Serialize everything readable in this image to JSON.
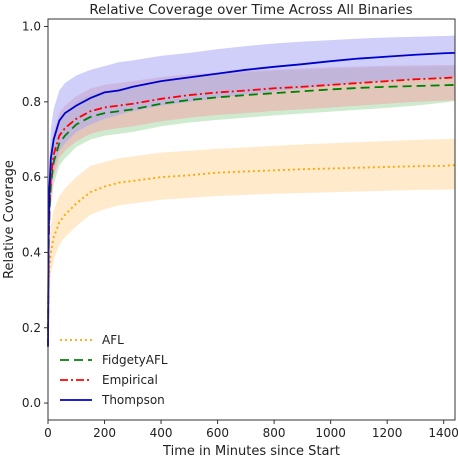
{
  "chart_data": {
    "type": "line",
    "title": "Relative Coverage over Time Across All Binaries",
    "xlabel": "Time in Minutes since Start",
    "ylabel": "Relative Coverage",
    "xlim": [
      0,
      1440
    ],
    "ylim": [
      0.0,
      1.0
    ],
    "xticks": [
      0,
      200,
      400,
      600,
      800,
      1000,
      1200,
      1400
    ],
    "yticks": [
      0.0,
      0.2,
      0.4,
      0.6,
      0.8,
      1.0
    ],
    "grid": false,
    "legend_position": "lower-left",
    "series": [
      {
        "name": "AFL",
        "color": "#ffa500",
        "band_color": "#ffd9a0",
        "linestyle": "dotted",
        "x": [
          0,
          2,
          5,
          10,
          20,
          40,
          60,
          100,
          150,
          200,
          250,
          300,
          400,
          500,
          600,
          700,
          800,
          900,
          1000,
          1100,
          1200,
          1300,
          1400,
          1440
        ],
        "y": [
          0.2,
          0.32,
          0.36,
          0.4,
          0.44,
          0.48,
          0.5,
          0.53,
          0.56,
          0.575,
          0.585,
          0.59,
          0.6,
          0.605,
          0.612,
          0.615,
          0.618,
          0.621,
          0.623,
          0.625,
          0.627,
          0.629,
          0.63,
          0.632
        ],
        "lower": [
          0.14,
          0.26,
          0.3,
          0.34,
          0.38,
          0.42,
          0.44,
          0.47,
          0.5,
          0.515,
          0.525,
          0.53,
          0.54,
          0.545,
          0.55,
          0.553,
          0.556,
          0.558,
          0.56,
          0.562,
          0.564,
          0.566,
          0.567,
          0.568
        ],
        "upper": [
          0.26,
          0.38,
          0.42,
          0.47,
          0.51,
          0.55,
          0.57,
          0.6,
          0.63,
          0.64,
          0.65,
          0.655,
          0.665,
          0.67,
          0.675,
          0.679,
          0.683,
          0.687,
          0.69,
          0.693,
          0.696,
          0.699,
          0.701,
          0.702
        ]
      },
      {
        "name": "FidgetyAFL",
        "color": "#008000",
        "band_color": "#a8dba8",
        "linestyle": "dashed",
        "x": [
          0,
          2,
          5,
          10,
          20,
          40,
          60,
          100,
          150,
          200,
          250,
          300,
          400,
          500,
          600,
          700,
          800,
          900,
          1000,
          1100,
          1200,
          1300,
          1400,
          1440
        ],
        "y": [
          0.15,
          0.4,
          0.5,
          0.58,
          0.64,
          0.69,
          0.71,
          0.74,
          0.76,
          0.77,
          0.775,
          0.78,
          0.795,
          0.805,
          0.812,
          0.818,
          0.823,
          0.828,
          0.833,
          0.837,
          0.84,
          0.842,
          0.844,
          0.845
        ],
        "lower": [
          0.1,
          0.34,
          0.44,
          0.52,
          0.58,
          0.63,
          0.65,
          0.68,
          0.7,
          0.71,
          0.715,
          0.72,
          0.735,
          0.745,
          0.752,
          0.758,
          0.764,
          0.769,
          0.774,
          0.779,
          0.784,
          0.79,
          0.798,
          0.802
        ],
        "upper": [
          0.2,
          0.46,
          0.56,
          0.64,
          0.7,
          0.75,
          0.77,
          0.8,
          0.82,
          0.83,
          0.835,
          0.84,
          0.855,
          0.865,
          0.872,
          0.878,
          0.882,
          0.885,
          0.888,
          0.89,
          0.892,
          0.893,
          0.894,
          0.895
        ]
      },
      {
        "name": "Empirical",
        "color": "#ff0000",
        "band_color": "#f0a8a8",
        "linestyle": "dashdot",
        "x": [
          0,
          2,
          5,
          10,
          20,
          40,
          60,
          100,
          150,
          200,
          250,
          300,
          400,
          500,
          600,
          700,
          800,
          900,
          1000,
          1100,
          1200,
          1300,
          1400,
          1440
        ],
        "y": [
          0.15,
          0.42,
          0.52,
          0.6,
          0.66,
          0.71,
          0.73,
          0.755,
          0.775,
          0.785,
          0.79,
          0.795,
          0.808,
          0.818,
          0.825,
          0.83,
          0.836,
          0.84,
          0.845,
          0.85,
          0.855,
          0.86,
          0.863,
          0.865
        ],
        "lower": [
          0.1,
          0.36,
          0.46,
          0.54,
          0.6,
          0.65,
          0.67,
          0.695,
          0.715,
          0.725,
          0.73,
          0.735,
          0.748,
          0.758,
          0.765,
          0.77,
          0.776,
          0.78,
          0.785,
          0.79,
          0.795,
          0.8,
          0.803,
          0.805
        ],
        "upper": [
          0.2,
          0.48,
          0.58,
          0.66,
          0.72,
          0.77,
          0.79,
          0.815,
          0.835,
          0.845,
          0.85,
          0.855,
          0.866,
          0.873,
          0.878,
          0.882,
          0.886,
          0.889,
          0.892,
          0.894,
          0.896,
          0.897,
          0.898,
          0.898
        ]
      },
      {
        "name": "Thompson",
        "color": "#0000cc",
        "band_color": "#a8a8f5",
        "linestyle": "solid",
        "x": [
          0,
          2,
          5,
          10,
          20,
          40,
          60,
          100,
          150,
          200,
          250,
          300,
          400,
          500,
          600,
          700,
          800,
          900,
          1000,
          1100,
          1200,
          1300,
          1400,
          1440
        ],
        "y": [
          0.15,
          0.45,
          0.57,
          0.65,
          0.7,
          0.75,
          0.77,
          0.79,
          0.81,
          0.825,
          0.83,
          0.84,
          0.855,
          0.865,
          0.875,
          0.885,
          0.893,
          0.9,
          0.908,
          0.915,
          0.92,
          0.925,
          0.929,
          0.93
        ],
        "lower": [
          0.1,
          0.38,
          0.49,
          0.56,
          0.62,
          0.67,
          0.69,
          0.72,
          0.74,
          0.755,
          0.765,
          0.775,
          0.79,
          0.8,
          0.81,
          0.82,
          0.828,
          0.835,
          0.843,
          0.85,
          0.856,
          0.86,
          0.864,
          0.866
        ],
        "upper": [
          0.2,
          0.52,
          0.65,
          0.73,
          0.78,
          0.83,
          0.85,
          0.87,
          0.885,
          0.895,
          0.905,
          0.91,
          0.922,
          0.93,
          0.94,
          0.948,
          0.955,
          0.96,
          0.964,
          0.968,
          0.971,
          0.973,
          0.975,
          0.976
        ]
      }
    ]
  }
}
